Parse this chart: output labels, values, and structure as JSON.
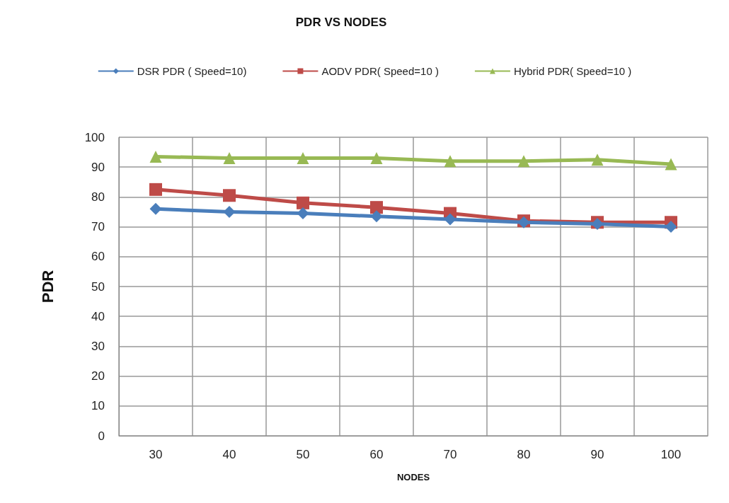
{
  "chart_data": {
    "type": "line",
    "title": "PDR VS NODES",
    "xlabel": "NODES",
    "ylabel": "PDR",
    "categories": [
      "30",
      "40",
      "50",
      "60",
      "70",
      "80",
      "90",
      "100"
    ],
    "series": [
      {
        "name": "DSR PDR ( Speed=10)",
        "color": "#4a7ebb",
        "marker": "diamond",
        "values": [
          76,
          75,
          74.5,
          73.5,
          72.5,
          71.5,
          71,
          70
        ]
      },
      {
        "name": "AODV PDR( Speed=10 )",
        "color": "#be4b48",
        "marker": "square",
        "values": [
          82.5,
          80.5,
          78,
          76.5,
          74.5,
          72,
          71.5,
          71.5
        ]
      },
      {
        "name": "Hybrid PDR( Speed=10 )",
        "color": "#98b954",
        "marker": "triangle",
        "values": [
          93.5,
          93,
          93,
          93,
          92,
          92,
          92.5,
          91
        ]
      }
    ],
    "ylim": [
      0,
      100
    ],
    "yticks": [
      0,
      10,
      20,
      30,
      40,
      50,
      60,
      70,
      80,
      90,
      100
    ],
    "grid": true,
    "legend": "top"
  }
}
